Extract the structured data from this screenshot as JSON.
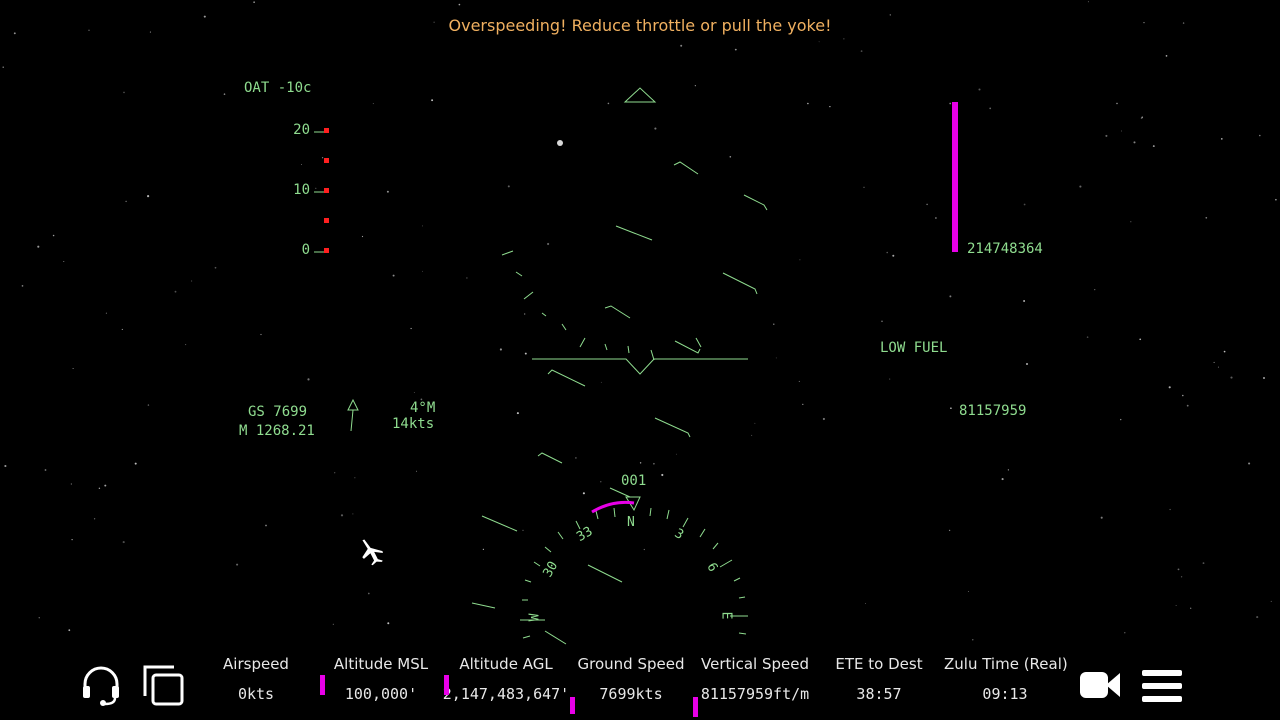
{
  "colors": {
    "hud_green": "#8fdc8f",
    "warning_orange": "#f0b060",
    "magenta": "#e800e8",
    "ladder_red": "#ff2020",
    "stat_text": "#e8e8e8"
  },
  "warning": "Overspeeding! Reduce throttle or pull the yoke!",
  "hud": {
    "oat": "OAT -10c",
    "throttle_scale": [
      "20",
      "10",
      "0"
    ],
    "altitude_readout": "214748364",
    "low_fuel": "LOW FUEL",
    "vertical_speed_readout": "81157959",
    "ground_speed": "GS 7699",
    "mach": "M 1268.21",
    "wind_direction": "4°M",
    "wind_speed": "14kts",
    "heading": "001",
    "compass_labels": [
      "33",
      "N",
      "3",
      "30",
      "6",
      "W",
      "E"
    ]
  },
  "stats": [
    {
      "label": "Airspeed",
      "value": "0kts"
    },
    {
      "label": "Altitude MSL",
      "value": "100,000'"
    },
    {
      "label": "Altitude AGL",
      "value": "2,147,483,647'"
    },
    {
      "label": "Ground Speed",
      "value": "7699kts"
    },
    {
      "label": "Vertical Speed",
      "value": "81157959ft/m"
    },
    {
      "label": "ETE to Dest",
      "value": "38:57"
    },
    {
      "label": "Zulu Time (Real)",
      "value": "09:13"
    }
  ],
  "icons": {
    "headset": "headset-icon",
    "windows": "windows-icon",
    "camera": "video-camera-icon",
    "menu": "menu-icon",
    "aircraft": "aircraft-icon"
  }
}
